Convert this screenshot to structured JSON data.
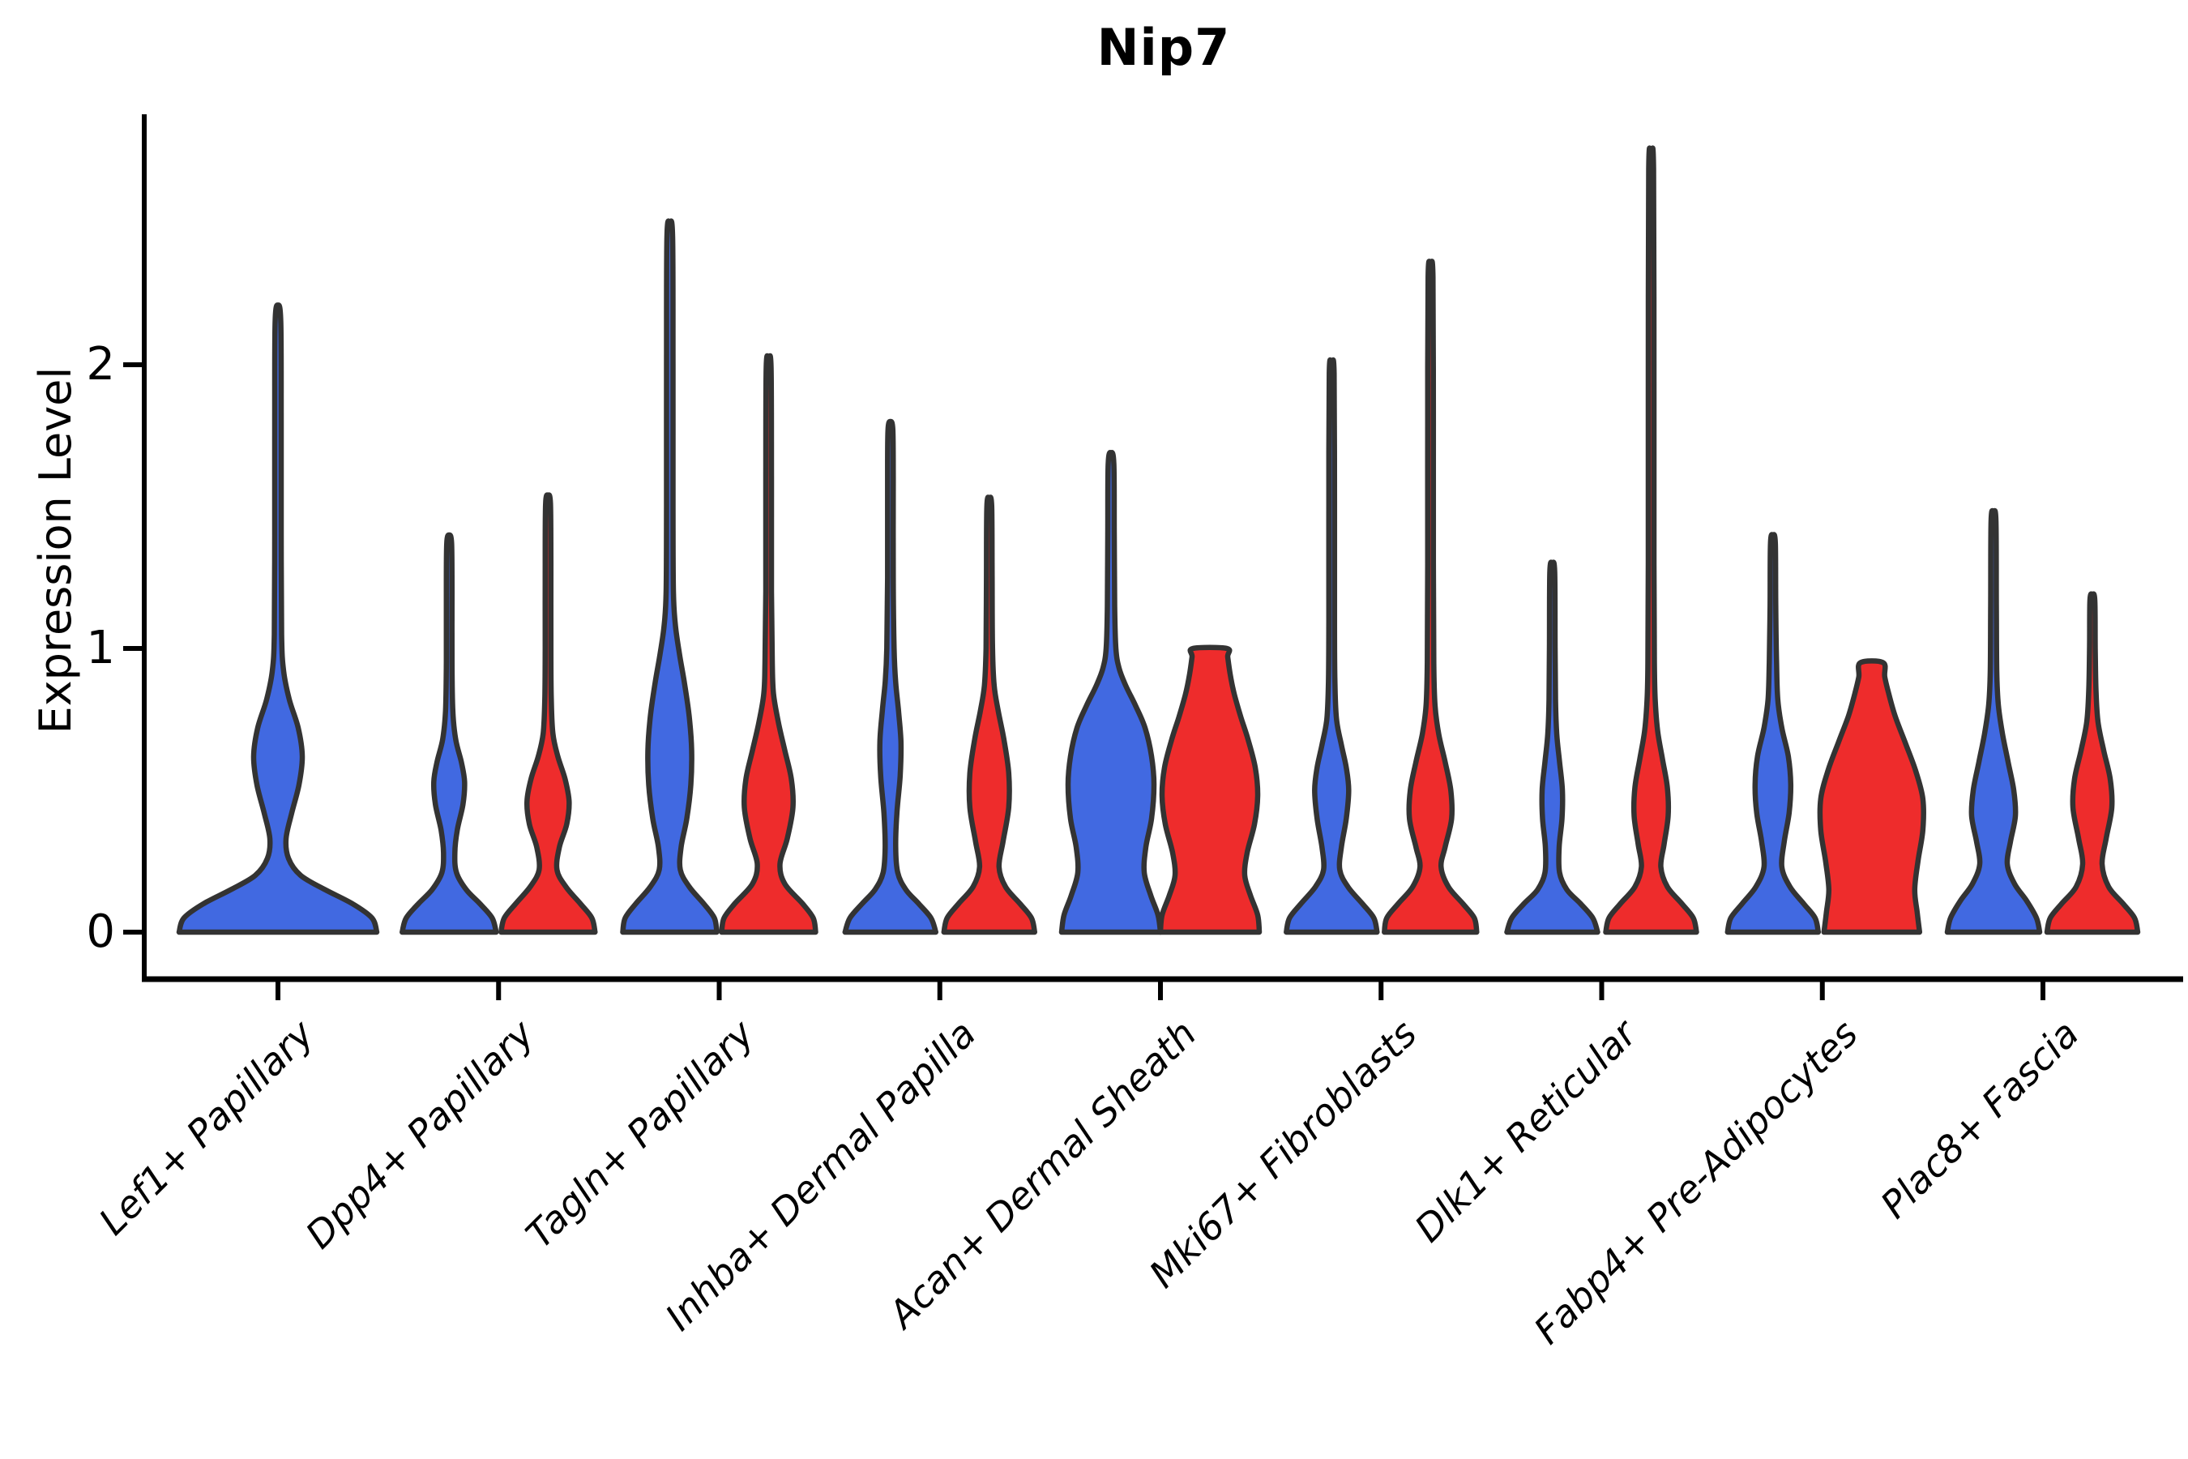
{
  "title": "Nip7",
  "y_axis": {
    "label": "Expression Level",
    "tick_labels": [
      "0",
      "1",
      "2"
    ]
  },
  "chart_data": {
    "type": "violin",
    "title": "Nip7",
    "ylabel": "Expression Level",
    "xlabel": "",
    "ylim": [
      0,
      2.8
    ],
    "yticks": [
      0,
      1,
      2
    ],
    "grid": false,
    "legend_position": "none",
    "categories": [
      "Lef1+ Papillary",
      "Dpp4+ Papillary",
      "Tagln+ Papillary",
      "Inhba+ Dermal Papilla",
      "Acan+ Dermal Sheath",
      "Mki67+ Fibroblasts",
      "Dlk1+ Reticular",
      "Fabp4+ Pre-Adipocytes",
      "Plac8+ Fascia"
    ],
    "splits": [
      "blue",
      "red"
    ],
    "colors": {
      "blue": "#4169E1",
      "red": "#EE2C2C",
      "outline": "#333333"
    },
    "series": [
      {
        "name": "blue",
        "max_expression": [
          2.21,
          1.4,
          2.5,
          1.8,
          1.69,
          2.0,
          1.3,
          1.4,
          1.48
        ]
      },
      {
        "name": "red",
        "max_expression": [
          null,
          1.54,
          2.02,
          1.53,
          1.0,
          2.35,
          2.73,
          0.95,
          1.19
        ]
      }
    ],
    "violins": [
      {
        "category": 0,
        "split": "blue",
        "flat_top": false,
        "profile": [
          [
            0,
            122
          ],
          [
            0.05,
            116
          ],
          [
            0.1,
            92
          ],
          [
            0.15,
            58
          ],
          [
            0.2,
            28
          ],
          [
            0.26,
            13
          ],
          [
            0.33,
            10
          ],
          [
            0.42,
            17
          ],
          [
            0.52,
            26
          ],
          [
            0.62,
            30
          ],
          [
            0.72,
            25
          ],
          [
            0.82,
            14
          ],
          [
            0.92,
            7
          ],
          [
            1.05,
            4.5
          ],
          [
            1.4,
            4
          ],
          [
            1.8,
            4
          ],
          [
            2.15,
            3.5
          ],
          [
            2.21,
            0
          ]
        ]
      },
      {
        "category": 1,
        "split": "blue",
        "flat_top": false,
        "profile": [
          [
            0,
            58
          ],
          [
            0.05,
            53
          ],
          [
            0.1,
            38
          ],
          [
            0.15,
            21
          ],
          [
            0.21,
            9
          ],
          [
            0.28,
            7
          ],
          [
            0.36,
            10
          ],
          [
            0.45,
            17
          ],
          [
            0.53,
            19
          ],
          [
            0.6,
            15
          ],
          [
            0.68,
            8
          ],
          [
            0.78,
            4.5
          ],
          [
            0.95,
            3.5
          ],
          [
            1.2,
            3.5
          ],
          [
            1.37,
            3
          ],
          [
            1.4,
            0
          ]
        ]
      },
      {
        "category": 1,
        "split": "red",
        "flat_top": false,
        "profile": [
          [
            0,
            58
          ],
          [
            0.05,
            54
          ],
          [
            0.1,
            40
          ],
          [
            0.16,
            22
          ],
          [
            0.22,
            11
          ],
          [
            0.3,
            14
          ],
          [
            0.38,
            23
          ],
          [
            0.46,
            26
          ],
          [
            0.54,
            21
          ],
          [
            0.62,
            12
          ],
          [
            0.7,
            6
          ],
          [
            0.82,
            4
          ],
          [
            1.0,
            3.5
          ],
          [
            1.3,
            3.5
          ],
          [
            1.51,
            3
          ],
          [
            1.54,
            0
          ]
        ]
      },
      {
        "category": 2,
        "split": "blue",
        "flat_top": false,
        "profile": [
          [
            0,
            58
          ],
          [
            0.05,
            55
          ],
          [
            0.1,
            42
          ],
          [
            0.16,
            24
          ],
          [
            0.22,
            13
          ],
          [
            0.3,
            14
          ],
          [
            0.4,
            21
          ],
          [
            0.52,
            26
          ],
          [
            0.64,
            27
          ],
          [
            0.76,
            24
          ],
          [
            0.88,
            18
          ],
          [
            0.98,
            12
          ],
          [
            1.08,
            7
          ],
          [
            1.2,
            4.5
          ],
          [
            1.5,
            4
          ],
          [
            2.0,
            4
          ],
          [
            2.45,
            3.5
          ],
          [
            2.5,
            0
          ]
        ]
      },
      {
        "category": 2,
        "split": "red",
        "flat_top": false,
        "profile": [
          [
            0,
            58
          ],
          [
            0.05,
            55
          ],
          [
            0.1,
            42
          ],
          [
            0.17,
            20
          ],
          [
            0.24,
            14
          ],
          [
            0.33,
            23
          ],
          [
            0.44,
            30
          ],
          [
            0.54,
            28
          ],
          [
            0.64,
            20
          ],
          [
            0.74,
            12
          ],
          [
            0.84,
            6
          ],
          [
            0.95,
            4.5
          ],
          [
            1.2,
            3.5
          ],
          [
            1.6,
            3.5
          ],
          [
            1.99,
            3
          ],
          [
            2.02,
            0
          ]
        ]
      },
      {
        "category": 3,
        "split": "blue",
        "flat_top": false,
        "profile": [
          [
            0,
            56
          ],
          [
            0.05,
            50
          ],
          [
            0.1,
            35
          ],
          [
            0.15,
            19
          ],
          [
            0.21,
            9
          ],
          [
            0.3,
            6.5
          ],
          [
            0.42,
            8
          ],
          [
            0.55,
            12
          ],
          [
            0.67,
            13
          ],
          [
            0.78,
            10
          ],
          [
            0.88,
            6.5
          ],
          [
            1.0,
            4.5
          ],
          [
            1.25,
            3.5
          ],
          [
            1.6,
            3.5
          ],
          [
            1.77,
            3
          ],
          [
            1.8,
            0
          ]
        ]
      },
      {
        "category": 3,
        "split": "red",
        "flat_top": false,
        "profile": [
          [
            0,
            56
          ],
          [
            0.05,
            52
          ],
          [
            0.1,
            38
          ],
          [
            0.16,
            20
          ],
          [
            0.23,
            12
          ],
          [
            0.32,
            17
          ],
          [
            0.44,
            24
          ],
          [
            0.56,
            24
          ],
          [
            0.68,
            18
          ],
          [
            0.78,
            11
          ],
          [
            0.87,
            6
          ],
          [
            1.0,
            4
          ],
          [
            1.25,
            3.5
          ],
          [
            1.5,
            3
          ],
          [
            1.53,
            0
          ]
        ]
      },
      {
        "category": 4,
        "split": "blue",
        "flat_top": false,
        "profile": [
          [
            0,
            61
          ],
          [
            0.06,
            58
          ],
          [
            0.13,
            49
          ],
          [
            0.21,
            41
          ],
          [
            0.3,
            43
          ],
          [
            0.4,
            50
          ],
          [
            0.52,
            53
          ],
          [
            0.62,
            50
          ],
          [
            0.72,
            42
          ],
          [
            0.8,
            30
          ],
          [
            0.87,
            18
          ],
          [
            0.93,
            10
          ],
          [
            1.0,
            6
          ],
          [
            1.15,
            4.5
          ],
          [
            1.4,
            4
          ],
          [
            1.65,
            3.5
          ],
          [
            1.69,
            0
          ]
        ]
      },
      {
        "category": 4,
        "split": "red",
        "flat_top": true,
        "profile": [
          [
            0,
            61
          ],
          [
            0.06,
            59
          ],
          [
            0.13,
            50
          ],
          [
            0.2,
            43
          ],
          [
            0.28,
            46
          ],
          [
            0.38,
            55
          ],
          [
            0.48,
            59
          ],
          [
            0.58,
            56
          ],
          [
            0.68,
            47
          ],
          [
            0.76,
            38
          ],
          [
            0.84,
            30
          ],
          [
            0.91,
            25
          ],
          [
            0.97,
            22
          ],
          [
            1.0,
            21
          ]
        ]
      },
      {
        "category": 5,
        "split": "blue",
        "flat_top": false,
        "profile": [
          [
            0,
            56
          ],
          [
            0.05,
            52
          ],
          [
            0.1,
            38
          ],
          [
            0.16,
            20
          ],
          [
            0.22,
            10
          ],
          [
            0.3,
            12
          ],
          [
            0.4,
            18
          ],
          [
            0.5,
            21
          ],
          [
            0.58,
            18
          ],
          [
            0.66,
            12
          ],
          [
            0.75,
            6
          ],
          [
            0.88,
            4
          ],
          [
            1.1,
            3.5
          ],
          [
            1.5,
            3.5
          ],
          [
            1.97,
            3
          ],
          [
            2.0,
            0
          ]
        ]
      },
      {
        "category": 5,
        "split": "red",
        "flat_top": false,
        "profile": [
          [
            0,
            57
          ],
          [
            0.05,
            54
          ],
          [
            0.1,
            40
          ],
          [
            0.16,
            22
          ],
          [
            0.23,
            13
          ],
          [
            0.3,
            18
          ],
          [
            0.4,
            26
          ],
          [
            0.5,
            25
          ],
          [
            0.6,
            18
          ],
          [
            0.7,
            10
          ],
          [
            0.8,
            5.5
          ],
          [
            0.95,
            4
          ],
          [
            1.3,
            3.5
          ],
          [
            1.8,
            3.5
          ],
          [
            2.31,
            3
          ],
          [
            2.35,
            0
          ]
        ]
      },
      {
        "category": 6,
        "split": "blue",
        "flat_top": false,
        "profile": [
          [
            0,
            56
          ],
          [
            0.05,
            50
          ],
          [
            0.1,
            35
          ],
          [
            0.15,
            18
          ],
          [
            0.21,
            9
          ],
          [
            0.3,
            8.5
          ],
          [
            0.4,
            12
          ],
          [
            0.5,
            12.5
          ],
          [
            0.6,
            9
          ],
          [
            0.7,
            5.5
          ],
          [
            0.82,
            4
          ],
          [
            1.0,
            3.5
          ],
          [
            1.27,
            3
          ],
          [
            1.3,
            0
          ]
        ]
      },
      {
        "category": 6,
        "split": "red",
        "flat_top": false,
        "profile": [
          [
            0,
            56
          ],
          [
            0.05,
            52
          ],
          [
            0.1,
            38
          ],
          [
            0.16,
            20
          ],
          [
            0.23,
            12
          ],
          [
            0.31,
            16
          ],
          [
            0.41,
            21
          ],
          [
            0.51,
            20
          ],
          [
            0.61,
            14
          ],
          [
            0.71,
            8
          ],
          [
            0.82,
            5
          ],
          [
            0.95,
            4
          ],
          [
            1.3,
            3.5
          ],
          [
            1.9,
            3.5
          ],
          [
            2.69,
            3
          ],
          [
            2.73,
            0
          ]
        ]
      },
      {
        "category": 7,
        "split": "blue",
        "flat_top": false,
        "profile": [
          [
            0,
            56
          ],
          [
            0.05,
            52
          ],
          [
            0.1,
            38
          ],
          [
            0.16,
            21
          ],
          [
            0.23,
            11
          ],
          [
            0.32,
            14
          ],
          [
            0.42,
            20
          ],
          [
            0.52,
            22
          ],
          [
            0.62,
            19
          ],
          [
            0.72,
            11
          ],
          [
            0.82,
            6
          ],
          [
            0.95,
            4.5
          ],
          [
            1.15,
            3.5
          ],
          [
            1.37,
            3
          ],
          [
            1.4,
            0
          ]
        ]
      },
      {
        "category": 7,
        "split": "red",
        "flat_top": true,
        "profile": [
          [
            0,
            59
          ],
          [
            0.07,
            56
          ],
          [
            0.15,
            53
          ],
          [
            0.25,
            57
          ],
          [
            0.36,
            63
          ],
          [
            0.47,
            63
          ],
          [
            0.57,
            54
          ],
          [
            0.67,
            41
          ],
          [
            0.76,
            29
          ],
          [
            0.84,
            21
          ],
          [
            0.9,
            16
          ],
          [
            0.95,
            14
          ]
        ]
      },
      {
        "category": 8,
        "split": "blue",
        "flat_top": false,
        "profile": [
          [
            0,
            57
          ],
          [
            0.05,
            53
          ],
          [
            0.11,
            41
          ],
          [
            0.17,
            26
          ],
          [
            0.24,
            17
          ],
          [
            0.32,
            21
          ],
          [
            0.41,
            27
          ],
          [
            0.5,
            25
          ],
          [
            0.6,
            18
          ],
          [
            0.7,
            11
          ],
          [
            0.8,
            6
          ],
          [
            0.92,
            4
          ],
          [
            1.15,
            3.5
          ],
          [
            1.45,
            3
          ],
          [
            1.48,
            0
          ]
        ]
      },
      {
        "category": 8,
        "split": "red",
        "flat_top": false,
        "profile": [
          [
            0,
            56
          ],
          [
            0.05,
            52
          ],
          [
            0.1,
            38
          ],
          [
            0.16,
            20
          ],
          [
            0.24,
            12
          ],
          [
            0.33,
            17
          ],
          [
            0.44,
            24
          ],
          [
            0.54,
            22
          ],
          [
            0.64,
            14
          ],
          [
            0.74,
            7
          ],
          [
            0.85,
            4.5
          ],
          [
            1.0,
            3.5
          ],
          [
            1.17,
            3
          ],
          [
            1.19,
            0
          ]
        ]
      }
    ]
  }
}
